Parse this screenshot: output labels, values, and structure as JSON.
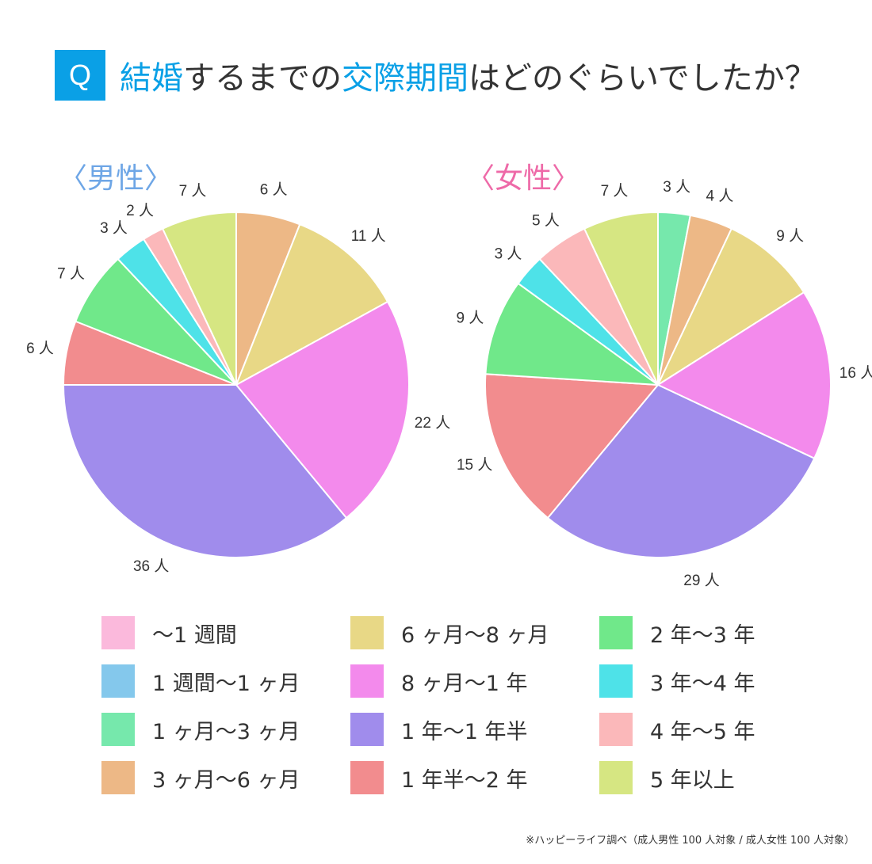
{
  "header": {
    "badge": "Q",
    "title_parts": [
      {
        "text": "結婚",
        "highlight": true
      },
      {
        "text": "するまでの",
        "highlight": false
      },
      {
        "text": "交際期間",
        "highlight": true
      },
      {
        "text": "はどのぐらいでしたか？",
        "highlight": false
      }
    ]
  },
  "colors": {
    "accent": "#0aa0e6",
    "male_label": "#6ea6e6",
    "female_label": "#ee6aa8"
  },
  "legend": [
    {
      "label": "〜1 週間",
      "color": "#fbb9dc"
    },
    {
      "label": "1 週間〜1 ヶ月",
      "color": "#84c8ec"
    },
    {
      "label": "1 ヶ月〜3 ヶ月",
      "color": "#76e8ac"
    },
    {
      "label": "3 ヶ月〜6 ヶ月",
      "color": "#edb886"
    },
    {
      "label": "6 ヶ月〜8 ヶ月",
      "color": "#e8d886"
    },
    {
      "label": "8 ヶ月〜1 年",
      "color": "#f38aec"
    },
    {
      "label": "1 年〜1 年半",
      "color": "#a08cec"
    },
    {
      "label": "1 年半〜2 年",
      "color": "#f28c8e"
    },
    {
      "label": "2 年〜3 年",
      "color": "#70e88a"
    },
    {
      "label": "3 年〜4 年",
      "color": "#4ee2e8"
    },
    {
      "label": "4 年〜5 年",
      "color": "#fbb8ba"
    },
    {
      "label": "5 年以上",
      "color": "#d6e682"
    }
  ],
  "chart_data": [
    {
      "type": "pie",
      "title": "〈男性〉",
      "categories": [
        "〜1 週間",
        "1 週間〜1 ヶ月",
        "1 ヶ月〜3 ヶ月",
        "3 ヶ月〜6 ヶ月",
        "6 ヶ月〜8 ヶ月",
        "8 ヶ月〜1 年",
        "1 年〜1 年半",
        "1 年半〜2 年",
        "2 年〜3 年",
        "3 年〜4 年",
        "4 年〜5 年",
        "5 年以上"
      ],
      "values": [
        0,
        0,
        0,
        6,
        11,
        22,
        36,
        6,
        7,
        3,
        2,
        7
      ],
      "data_labels": [
        "",
        "",
        "",
        "6 人",
        "11 人",
        "22 人",
        "36 人",
        "6 人",
        "7 人",
        "3 人",
        "2 人",
        "7 人"
      ],
      "unit": "人"
    },
    {
      "type": "pie",
      "title": "〈女性〉",
      "categories": [
        "〜1 週間",
        "1 週間〜1 ヶ月",
        "1 ヶ月〜3 ヶ月",
        "3 ヶ月〜6 ヶ月",
        "6 ヶ月〜8 ヶ月",
        "8 ヶ月〜1 年",
        "1 年〜1 年半",
        "1 年半〜2 年",
        "2 年〜3 年",
        "3 年〜4 年",
        "4 年〜5 年",
        "5 年以上"
      ],
      "values": [
        0,
        0,
        3,
        4,
        9,
        16,
        29,
        15,
        9,
        3,
        5,
        7
      ],
      "data_labels": [
        "",
        "",
        "3 人",
        "4 人",
        "9 人",
        "16 人",
        "29 人",
        "15 人",
        "9 人",
        "3 人",
        "5 人",
        "7 人"
      ],
      "unit": "人"
    }
  ],
  "footnote": "※ハッピーライフ調べ（成人男性 100 人対象 / 成人女性 100 人対象）"
}
